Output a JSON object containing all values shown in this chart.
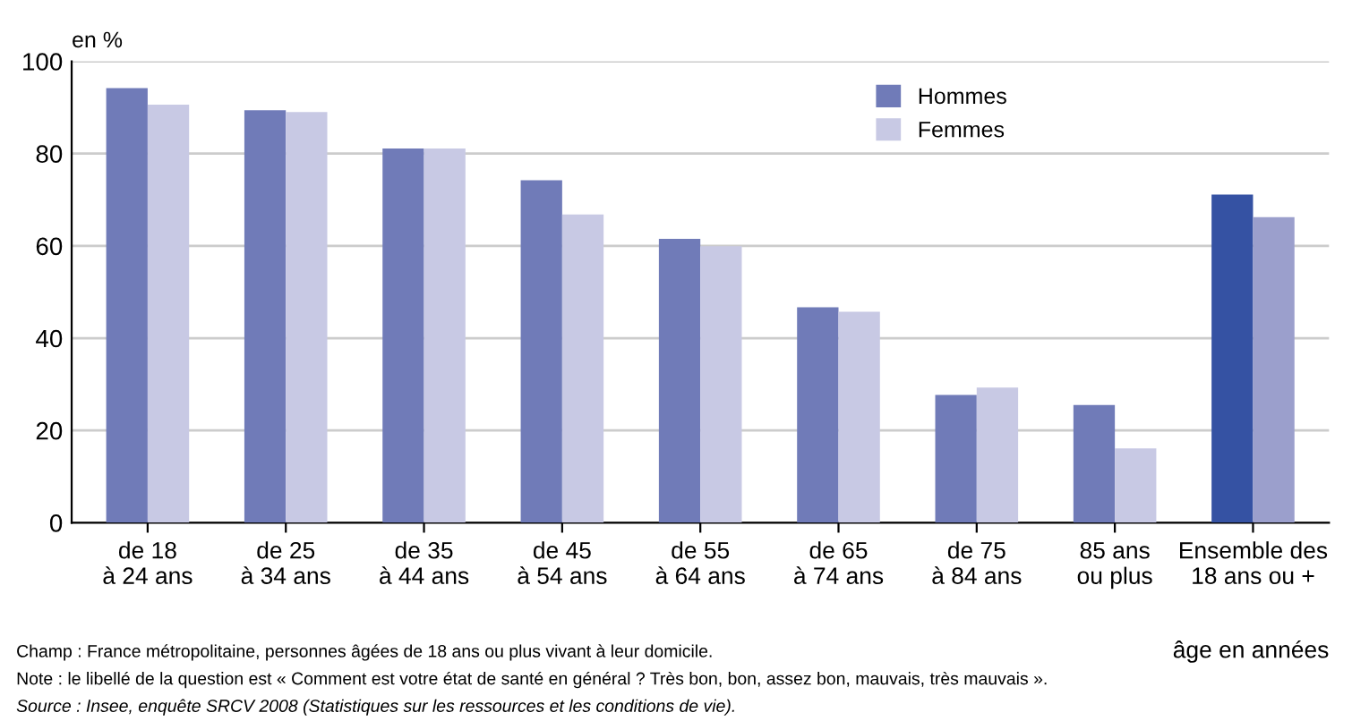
{
  "chart_data": {
    "type": "bar",
    "ylabel": "en %",
    "xlabel": "âge en années",
    "categories": [
      "de 18\nà 24 ans",
      "de 25\nà 34 ans",
      "de 35\nà 44 ans",
      "de 45\nà 54 ans",
      "de 55\nà 64 ans",
      "de 65\nà 74 ans",
      "de 75\nà 84 ans",
      "85 ans\nou plus",
      "Ensemble des\n18 ans ou +"
    ],
    "series": [
      {
        "name": "Hommes",
        "color": "#707bb8",
        "colors": [
          "#707bb8",
          "#707bb8",
          "#707bb8",
          "#707bb8",
          "#707bb8",
          "#707bb8",
          "#707bb8",
          "#707bb8",
          "#3552a3"
        ],
        "values": [
          94.2,
          89.4,
          81.1,
          74.2,
          61.5,
          46.7,
          27.7,
          25.5,
          71.1
        ]
      },
      {
        "name": "Femmes",
        "color": "#c8c9e4",
        "colors": [
          "#c8c9e4",
          "#c8c9e4",
          "#c8c9e4",
          "#c8c9e4",
          "#c8c9e4",
          "#c8c9e4",
          "#c8c9e4",
          "#c8c9e4",
          "#9b9fcc"
        ],
        "values": [
          90.6,
          89.0,
          81.1,
          66.8,
          59.9,
          45.7,
          29.3,
          16.1,
          66.2
        ]
      }
    ],
    "ylim": [
      0,
      100
    ],
    "yticks": [
      0,
      20,
      40,
      60,
      80,
      100
    ],
    "grid": "y",
    "legend": "top right",
    "annotations": [
      "Champ : France métropolitaine, personnes âgées de 18 ans ou plus vivant à leur domicile.",
      "Note : le libellé de la question est « Comment est votre état de santé en général ? Très bon, bon, assez bon, mauvais, très mauvais ».",
      "Source : Insee, enquête SRCV 2008 (Statistiques sur les ressources et les conditions de vie)."
    ]
  }
}
